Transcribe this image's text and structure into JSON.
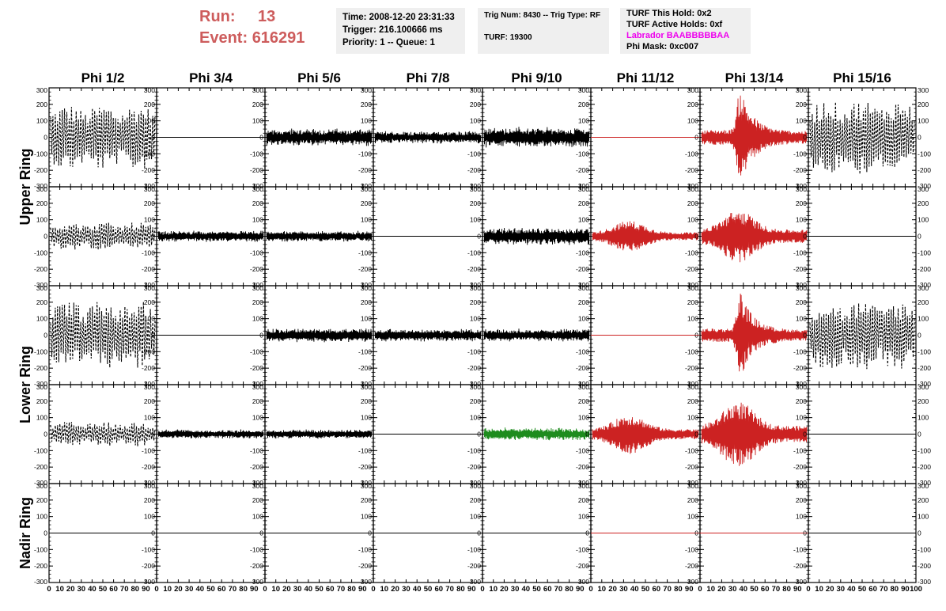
{
  "header": {
    "run_label": "Run:",
    "run_value": "13",
    "event_label": "Event:",
    "event_value": "616291",
    "time": "Time: 2008-12-20 23:31:33",
    "trigger": "Trigger: 216.100666 ms",
    "priority": "Priority: 1 -- Queue: 1",
    "trig_num": "Trig Num: 8430 -- Trig Type: RF",
    "turf": "TURF: 19300",
    "turf_this_hold": "TURF This Hold: 0x2",
    "turf_active_holds": "TURF Active Holds: 0xf",
    "labrador": "Labrador BAABBBBBAA",
    "phi_mask": "Phi Mask: 0xc007"
  },
  "colors": {
    "header_red": "#cd5c5c",
    "labrador_magenta": "#ee00ee",
    "trace_black": "#000000",
    "trace_red": "#cc2222",
    "trace_green": "#1e8c1e",
    "info_bg": "#efefef"
  },
  "chart_data": {
    "type": "line",
    "columns": [
      "Phi 1/2",
      "Phi 3/4",
      "Phi 5/6",
      "Phi 7/8",
      "Phi 9/10",
      "Phi 11/12",
      "Phi 13/14",
      "Phi 15/16"
    ],
    "row_groups": [
      "Upper Ring",
      "Lower Ring",
      "Nadir Ring"
    ],
    "rows_per_group": [
      2,
      2,
      1
    ],
    "xlim": [
      0,
      100
    ],
    "ylim": [
      -300,
      300
    ],
    "y_ticks": [
      300,
      200,
      100,
      0,
      -100,
      -200,
      -300
    ],
    "x_ticks": [
      0,
      10,
      20,
      30,
      40,
      50,
      60,
      70,
      80,
      90,
      100
    ],
    "grid": false,
    "panels": [
      [
        {
          "color": "black",
          "style": "dashed",
          "amplitude": 200,
          "envelope": "dense"
        },
        {
          "color": "black",
          "style": "solid",
          "amplitude": 0,
          "envelope": "flat"
        },
        {
          "color": "black",
          "style": "solid",
          "amplitude": 55,
          "envelope": "noise"
        },
        {
          "color": "black",
          "style": "solid",
          "amplitude": 40,
          "envelope": "noise"
        },
        {
          "color": "black",
          "style": "solid",
          "amplitude": 65,
          "envelope": "noise"
        },
        {
          "color": "red",
          "style": "solid",
          "amplitude": 0,
          "envelope": "flat"
        },
        {
          "color": "red",
          "style": "solid",
          "amplitude": 300,
          "envelope": "pulse"
        },
        {
          "color": "black",
          "style": "dashed",
          "amplitude": 230,
          "envelope": "dense"
        }
      ],
      [
        {
          "color": "black",
          "style": "dashed",
          "amplitude": 85,
          "envelope": "dense"
        },
        {
          "color": "black",
          "style": "solid",
          "amplitude": 35,
          "envelope": "noise"
        },
        {
          "color": "black",
          "style": "solid",
          "amplitude": 35,
          "envelope": "noise"
        },
        {
          "color": "black",
          "style": "solid",
          "amplitude": 0,
          "envelope": "flat"
        },
        {
          "color": "black",
          "style": "solid",
          "amplitude": 55,
          "envelope": "noise"
        },
        {
          "color": "red",
          "style": "solid",
          "amplitude": 95,
          "envelope": "pulse-wide"
        },
        {
          "color": "red",
          "style": "solid",
          "amplitude": 160,
          "envelope": "pulse-wide"
        },
        {
          "color": "black",
          "style": "solid",
          "amplitude": 0,
          "envelope": "flat"
        }
      ],
      [
        {
          "color": "black",
          "style": "dashed",
          "amplitude": 210,
          "envelope": "dense"
        },
        {
          "color": "black",
          "style": "solid",
          "amplitude": 0,
          "envelope": "flat"
        },
        {
          "color": "black",
          "style": "solid",
          "amplitude": 45,
          "envelope": "noise"
        },
        {
          "color": "black",
          "style": "solid",
          "amplitude": 40,
          "envelope": "noise"
        },
        {
          "color": "black",
          "style": "solid",
          "amplitude": 40,
          "envelope": "noise"
        },
        {
          "color": "red",
          "style": "solid",
          "amplitude": 0,
          "envelope": "flat"
        },
        {
          "color": "red",
          "style": "solid",
          "amplitude": 270,
          "envelope": "pulse"
        },
        {
          "color": "black",
          "style": "dashed",
          "amplitude": 210,
          "envelope": "dense"
        }
      ],
      [
        {
          "color": "black",
          "style": "dashed",
          "amplitude": 75,
          "envelope": "dense"
        },
        {
          "color": "black",
          "style": "solid",
          "amplitude": 30,
          "envelope": "noise"
        },
        {
          "color": "black",
          "style": "solid",
          "amplitude": 30,
          "envelope": "noise"
        },
        {
          "color": "black",
          "style": "solid",
          "amplitude": 0,
          "envelope": "flat"
        },
        {
          "color": "green",
          "style": "solid",
          "amplitude": 40,
          "envelope": "noise"
        },
        {
          "color": "red",
          "style": "solid",
          "amplitude": 120,
          "envelope": "pulse-wide"
        },
        {
          "color": "red",
          "style": "solid",
          "amplitude": 200,
          "envelope": "pulse-wide"
        },
        {
          "color": "black",
          "style": "solid",
          "amplitude": 0,
          "envelope": "flat"
        }
      ],
      [
        {
          "color": "black",
          "style": "solid",
          "amplitude": 0,
          "envelope": "flat"
        },
        {
          "color": "black",
          "style": "solid",
          "amplitude": 0,
          "envelope": "flat"
        },
        {
          "color": "black",
          "style": "solid",
          "amplitude": 0,
          "envelope": "flat"
        },
        {
          "color": "black",
          "style": "solid",
          "amplitude": 0,
          "envelope": "flat"
        },
        {
          "color": "black",
          "style": "solid",
          "amplitude": 0,
          "envelope": "flat"
        },
        {
          "color": "red",
          "style": "solid",
          "amplitude": 0,
          "envelope": "flat"
        },
        {
          "color": "red",
          "style": "solid",
          "amplitude": 0,
          "envelope": "flat"
        },
        {
          "color": "black",
          "style": "solid",
          "amplitude": 0,
          "envelope": "flat"
        }
      ]
    ]
  }
}
